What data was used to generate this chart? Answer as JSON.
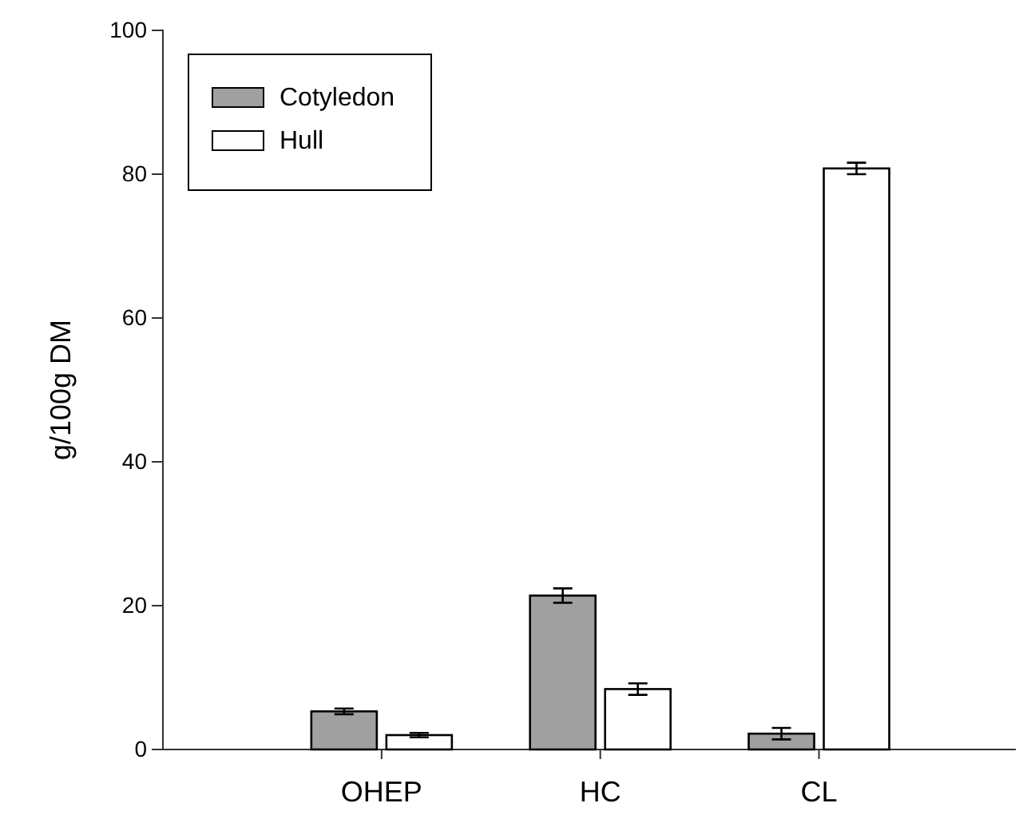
{
  "chart_data": {
    "type": "bar",
    "ylabel": "g/100g DM",
    "categories": [
      "OHEP",
      "HC",
      "CL"
    ],
    "series": [
      {
        "name": "Cotyledon",
        "color": "#a0a0a0",
        "values": [
          5.3,
          21.4,
          2.2
        ],
        "errors": [
          0.4,
          1.0,
          0.8
        ]
      },
      {
        "name": "Hull",
        "color": "#ffffff",
        "values": [
          2.0,
          8.4,
          80.8
        ],
        "errors": [
          0.3,
          0.8,
          0.8
        ]
      }
    ],
    "ylim": [
      0,
      100
    ],
    "yticks": [
      0,
      20,
      40,
      60,
      80,
      100
    ],
    "legend": "top left",
    "grid": false
  }
}
